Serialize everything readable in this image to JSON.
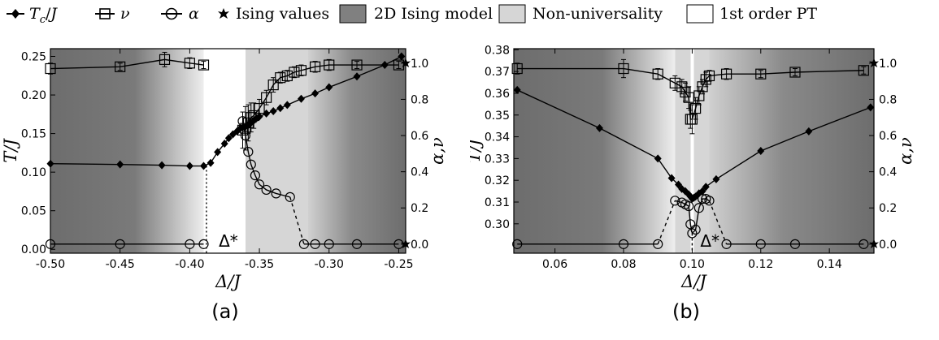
{
  "legend": {
    "items": [
      {
        "label": "T_c/J",
        "marker": "diamond"
      },
      {
        "label": "ν",
        "marker": "square"
      },
      {
        "label": "α",
        "marker": "circle"
      },
      {
        "label": "Ising values",
        "marker": "star"
      },
      {
        "label": "2D Ising model",
        "swatch": "#808080"
      },
      {
        "label": "Non-universality",
        "swatch": "#d6d6d6"
      },
      {
        "label": "1st order PT",
        "swatch": "#ffffff"
      }
    ]
  },
  "chart_data": [
    {
      "type": "scatter",
      "panel_label": "(a)",
      "xlabel": "Δ/J",
      "ylabel_left": "T/J",
      "ylabel_right": "α,ν",
      "xlim": [
        -0.5,
        -0.245
      ],
      "ylim_left": [
        -0.005,
        0.26
      ],
      "ylim_right": [
        -0.05,
        1.08
      ],
      "xticks": [
        -0.5,
        -0.45,
        -0.4,
        -0.35,
        -0.3,
        -0.25
      ],
      "xtick_labels": [
        "-0.50",
        "-0.45",
        "-0.40",
        "-0.35",
        "-0.30",
        "-0.25"
      ],
      "yticks_left": [
        0.0,
        0.05,
        0.1,
        0.15,
        0.2,
        0.25
      ],
      "ytick_labels_left": [
        "0.00",
        "0.05",
        "0.10",
        "0.15",
        "0.20",
        "0.25"
      ],
      "yticks_right": [
        0.0,
        0.2,
        0.4,
        0.6,
        0.8,
        1.0
      ],
      "ytick_labels_right": [
        "0.0",
        "0.2",
        "0.4",
        "0.6",
        "0.8",
        "1.0"
      ],
      "background_regions": [
        {
          "from": -0.5,
          "to": -0.39,
          "kind": "2D Ising model",
          "gradient": "to-light"
        },
        {
          "from": -0.39,
          "to": -0.36,
          "kind": "1st order PT"
        },
        {
          "from": -0.36,
          "to": -0.315,
          "kind": "Non-universality"
        },
        {
          "from": -0.315,
          "to": -0.245,
          "kind": "2D Ising model",
          "gradient": "to-dark"
        }
      ],
      "annotation": {
        "text": "Δ*",
        "x": -0.385
      },
      "series": [
        {
          "name": "T_c/J",
          "axis": "left",
          "marker": "diamond",
          "x": [
            -0.5,
            -0.45,
            -0.42,
            -0.4,
            -0.39,
            -0.385,
            -0.38,
            -0.375,
            -0.372,
            -0.369,
            -0.366,
            -0.364,
            -0.362,
            -0.36,
            -0.358,
            -0.356,
            -0.354,
            -0.352,
            -0.35,
            -0.345,
            -0.34,
            -0.335,
            -0.33,
            -0.32,
            -0.31,
            -0.3,
            -0.28,
            -0.26,
            -0.248
          ],
          "y": [
            0.111,
            0.11,
            0.109,
            0.108,
            0.108,
            0.112,
            0.126,
            0.137,
            0.144,
            0.149,
            0.153,
            0.156,
            0.158,
            0.159,
            0.161,
            0.164,
            0.167,
            0.17,
            0.172,
            0.176,
            0.179,
            0.183,
            0.187,
            0.195,
            0.202,
            0.21,
            0.224,
            0.239,
            0.25
          ]
        },
        {
          "name": "ν",
          "axis": "right",
          "marker": "square",
          "errorbars": true,
          "x": [
            -0.5,
            -0.45,
            -0.418,
            -0.4,
            -0.39,
            -0.362,
            -0.36,
            -0.358,
            -0.356,
            -0.354,
            -0.35,
            -0.345,
            -0.34,
            -0.335,
            -0.33,
            -0.325,
            -0.32,
            -0.31,
            -0.3,
            -0.28,
            -0.25
          ],
          "y": [
            0.97,
            0.98,
            1.02,
            1.0,
            0.99,
            0.63,
            0.64,
            0.67,
            0.7,
            0.71,
            0.75,
            0.81,
            0.88,
            0.92,
            0.93,
            0.95,
            0.96,
            0.98,
            0.99,
            0.99,
            0.99
          ],
          "err": [
            0.03,
            0.02,
            0.04,
            0.03,
            0.02,
            0.1,
            0.12,
            0.1,
            0.08,
            0.07,
            0.05,
            0.04,
            0.04,
            0.03,
            0.03,
            0.03,
            0.03,
            0.03,
            0.03,
            0.02,
            0.02
          ]
        },
        {
          "name": "α",
          "axis": "right",
          "marker": "circle",
          "x": [
            -0.5,
            -0.45,
            -0.4,
            -0.39,
            -0.362,
            -0.36,
            -0.358,
            -0.356,
            -0.353,
            -0.35,
            -0.345,
            -0.338,
            -0.328,
            -0.318,
            -0.31,
            -0.3,
            -0.28,
            -0.25
          ],
          "y": [
            0.0,
            0.0,
            0.0,
            0.0,
            0.68,
            0.6,
            0.51,
            0.44,
            0.38,
            0.33,
            0.3,
            0.28,
            0.26,
            0.0,
            0.0,
            0.0,
            0.0,
            0.0
          ]
        },
        {
          "name": "Ising values",
          "axis": "right",
          "marker": "star",
          "x": [
            -0.245,
            -0.245
          ],
          "y": [
            1.0,
            0.0
          ]
        }
      ]
    },
    {
      "type": "scatter",
      "panel_label": "(b)",
      "xlabel": "Δ/J",
      "ylabel_left": "T/J",
      "ylabel_right": "α,ν",
      "xlim": [
        0.048,
        0.153
      ],
      "ylim_left": [
        0.2865,
        0.3805
      ],
      "ylim_right": [
        -0.05,
        1.08
      ],
      "xticks": [
        0.06,
        0.08,
        0.1,
        0.12,
        0.14
      ],
      "xtick_labels": [
        "0.06",
        "0.08",
        "0.10",
        "0.12",
        "0.14"
      ],
      "yticks_left": [
        0.3,
        0.31,
        0.32,
        0.33,
        0.34,
        0.35,
        0.36,
        0.37,
        0.38
      ],
      "ytick_labels_left": [
        "0.30",
        "0.31",
        "0.32",
        "0.33",
        "0.34",
        "0.35",
        "0.36",
        "0.37",
        "0.38"
      ],
      "yticks_right": [
        0.0,
        0.2,
        0.4,
        0.6,
        0.8,
        1.0
      ],
      "ytick_labels_right": [
        "0.0",
        "0.2",
        "0.4",
        "0.6",
        "0.8",
        "1.0"
      ],
      "background_regions": [
        {
          "from": 0.048,
          "to": 0.095,
          "kind": "2D Ising model",
          "gradient": "to-light"
        },
        {
          "from": 0.095,
          "to": 0.0995,
          "kind": "Non-universality"
        },
        {
          "from": 0.0995,
          "to": 0.1005,
          "kind": "1st order PT"
        },
        {
          "from": 0.1005,
          "to": 0.105,
          "kind": "Non-universality"
        },
        {
          "from": 0.105,
          "to": 0.153,
          "kind": "2D Ising model",
          "gradient": "to-dark"
        }
      ],
      "annotation": {
        "text": "Δ*",
        "x": 0.1
      }
    }
  ]
}
